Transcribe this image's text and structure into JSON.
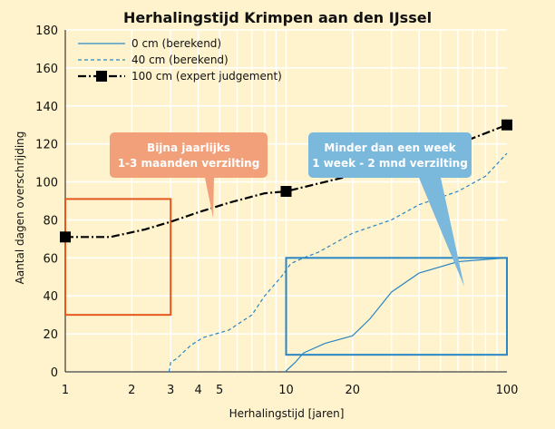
{
  "chart_data": {
    "type": "line",
    "title": "Herhalingstijd Krimpen aan den IJssel",
    "xlabel": "Herhalingstijd [jaren]",
    "ylabel": "Aantal dagen overschrijding",
    "xscale": "log",
    "xlim": [
      1,
      100
    ],
    "ylim": [
      0,
      180
    ],
    "grid": true,
    "legend_position": "top-left",
    "x_ticks": [
      1,
      2,
      3,
      4,
      5,
      10,
      20,
      100
    ],
    "y_ticks": [
      0,
      20,
      40,
      60,
      80,
      100,
      120,
      140,
      160,
      180
    ],
    "series": [
      {
        "name": "0 cm (berekend)",
        "style": "solid",
        "color": "#2a86c4",
        "points": [
          [
            9.9,
            0
          ],
          [
            11,
            5
          ],
          [
            12,
            10
          ],
          [
            15,
            15
          ],
          [
            20,
            19
          ],
          [
            24,
            28
          ],
          [
            30,
            42
          ],
          [
            40,
            52
          ],
          [
            60,
            58
          ],
          [
            100,
            60
          ]
        ]
      },
      {
        "name": "40 cm (berekend)",
        "style": "dashed",
        "color": "#2a86c4",
        "points": [
          [
            2.95,
            0
          ],
          [
            3.0,
            5
          ],
          [
            3.2,
            7
          ],
          [
            3.4,
            10
          ],
          [
            3.7,
            14
          ],
          [
            4.2,
            18
          ],
          [
            5.5,
            22
          ],
          [
            7.0,
            30
          ],
          [
            8.0,
            40
          ],
          [
            9.5,
            50
          ],
          [
            10.5,
            57
          ],
          [
            12,
            60
          ],
          [
            14,
            63
          ],
          [
            20,
            73
          ],
          [
            30,
            80
          ],
          [
            40,
            88
          ],
          [
            60,
            95
          ],
          [
            80,
            103
          ],
          [
            100,
            115
          ]
        ]
      },
      {
        "name": "100 cm (expert judgement)",
        "style": "dash-dot",
        "color": "#000000",
        "marker": "square",
        "points": [
          [
            1,
            71
          ],
          [
            1.6,
            71
          ],
          [
            2.3,
            75
          ],
          [
            3,
            79
          ],
          [
            4,
            84
          ],
          [
            5.5,
            89
          ],
          [
            8,
            94
          ],
          [
            10,
            95
          ],
          [
            40,
            112
          ],
          [
            100,
            130
          ]
        ],
        "markers_at": [
          [
            1,
            71
          ],
          [
            10,
            95
          ],
          [
            100,
            130
          ]
        ]
      }
    ],
    "annotations": [
      {
        "text_line1": "Bijna jaarlijks",
        "text_line2": "1-3 maanden verzilting",
        "color": "#f2a07a"
      },
      {
        "text_line1": "Minder dan een week",
        "text_line2": "1 week - 2 mnd verzilting",
        "color": "#7ab8dc"
      }
    ],
    "highlight_boxes": [
      {
        "color": "#e5571f",
        "x_range": [
          1,
          3
        ],
        "y_range": [
          30,
          91
        ]
      },
      {
        "color": "#2a86c4",
        "x_range": [
          10,
          100
        ],
        "y_range": [
          9,
          60
        ]
      }
    ]
  }
}
